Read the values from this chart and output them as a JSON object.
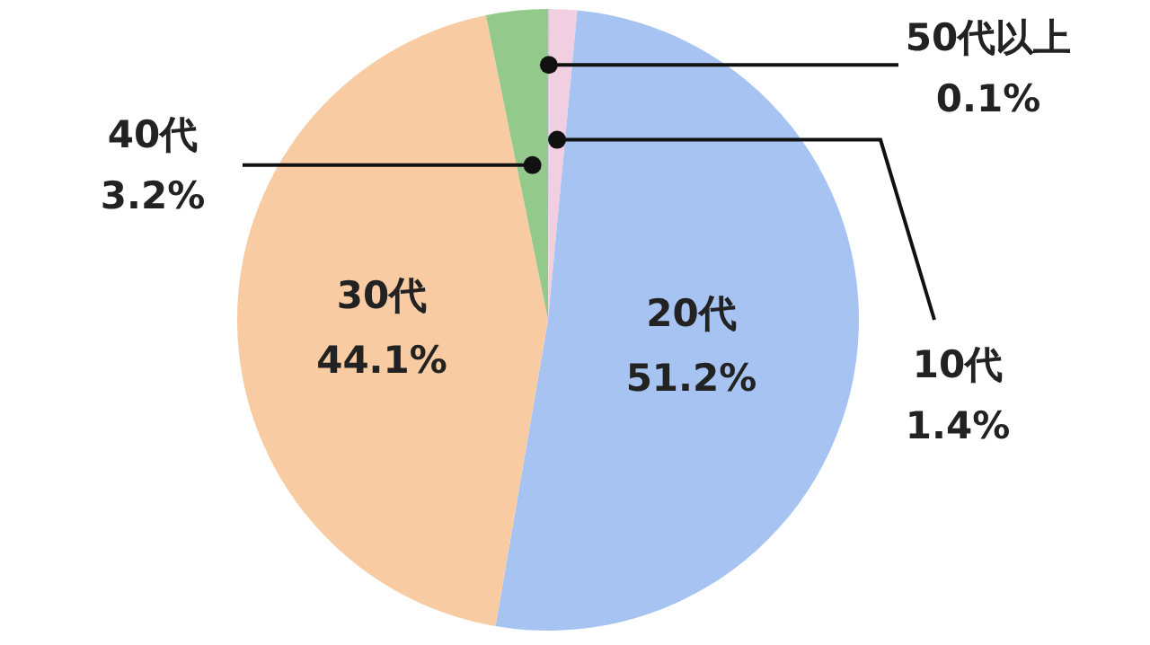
{
  "chart_data": {
    "type": "pie",
    "categories": [
      "50代以上",
      "10代",
      "20代",
      "30代",
      "40代"
    ],
    "values": [
      0.1,
      1.4,
      51.2,
      44.1,
      3.2
    ],
    "value_labels": [
      "0.1%",
      "1.4%",
      "51.2%",
      "44.1%",
      "3.2%"
    ],
    "colors": [
      "#d9c8e6",
      "#f2cfe0",
      "#a7c3f2",
      "#f8cba3",
      "#93c98a"
    ]
  }
}
